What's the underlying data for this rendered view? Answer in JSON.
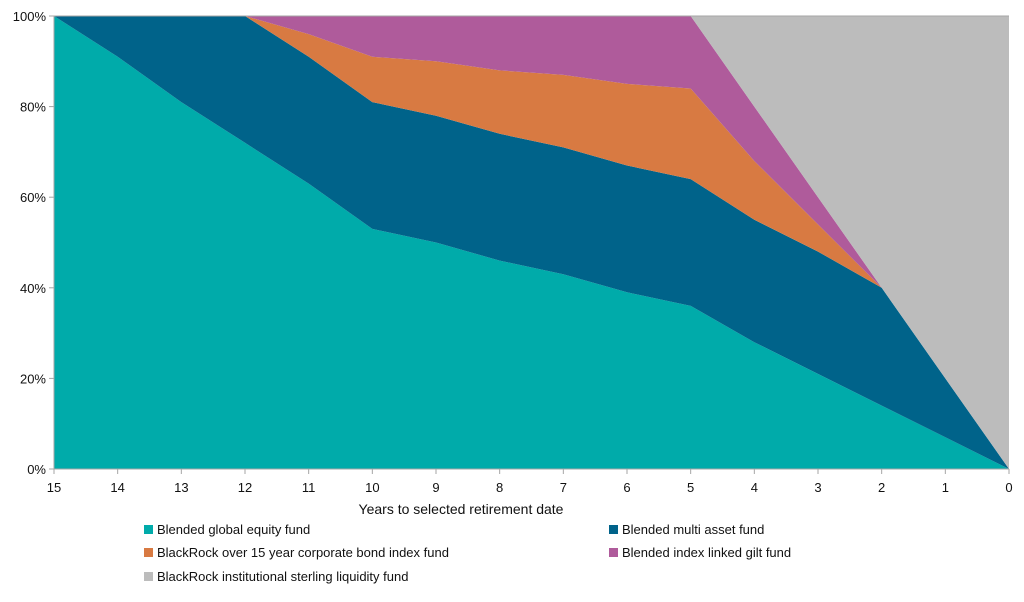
{
  "chart_data": {
    "type": "area",
    "stacked": true,
    "title": "",
    "xlabel": "Years to selected retirement date",
    "ylabel": "",
    "x": [
      15,
      14,
      13,
      12,
      11,
      10,
      9,
      8,
      7,
      6,
      5,
      4,
      3,
      2,
      1,
      0
    ],
    "x_tick_labels": [
      "15",
      "14",
      "13",
      "12",
      "11",
      "10",
      "9",
      "8",
      "7",
      "6",
      "5",
      "4",
      "3",
      "2",
      "1",
      "0"
    ],
    "y_tick_labels": [
      "0%",
      "20%",
      "40%",
      "60%",
      "80%",
      "100%"
    ],
    "y_ticks": [
      0,
      20,
      40,
      60,
      80,
      100
    ],
    "ylim": [
      0,
      100
    ],
    "grid": false,
    "legend_position": "bottom",
    "series": [
      {
        "name": "Blended global equity fund",
        "color": "#00ABAA",
        "values": [
          100,
          91,
          81,
          72,
          63,
          53,
          50,
          46,
          43,
          39,
          36,
          28,
          21,
          14,
          7,
          0
        ]
      },
      {
        "name": "Blended multi asset fund",
        "color": "#00638A",
        "values": [
          0,
          9,
          19,
          28,
          28,
          28,
          28,
          28,
          28,
          28,
          28,
          27,
          27,
          26,
          13,
          0
        ]
      },
      {
        "name": "BlackRock over 15 year corporate bond index fund",
        "color": "#D87A42",
        "values": [
          0,
          0,
          0,
          0,
          5,
          10,
          12,
          14,
          16,
          18,
          20,
          13,
          6,
          0,
          0,
          0
        ]
      },
      {
        "name": "Blended index linked gilt fund",
        "color": "#AF5B9B",
        "values": [
          0,
          0,
          0,
          0,
          4,
          9,
          10,
          12,
          13,
          15,
          16,
          12,
          6,
          0,
          0,
          0
        ]
      },
      {
        "name": "BlackRock institutional sterling liquidity fund",
        "color": "#BCBCBC",
        "values": [
          0,
          0,
          0,
          0,
          0,
          0,
          0,
          0,
          0,
          0,
          0,
          20,
          40,
          60,
          80,
          100
        ]
      }
    ]
  },
  "legend": {
    "items": [
      {
        "label": "Blended global equity fund",
        "color": "#00ABAA"
      },
      {
        "label": "Blended multi asset fund",
        "color": "#00638A"
      },
      {
        "label": "BlackRock over 15 year corporate bond index fund",
        "color": "#D87A42"
      },
      {
        "label": "Blended index linked gilt fund",
        "color": "#AF5B9B"
      },
      {
        "label": "BlackRock institutional sterling liquidity fund",
        "color": "#BCBCBC"
      }
    ]
  }
}
